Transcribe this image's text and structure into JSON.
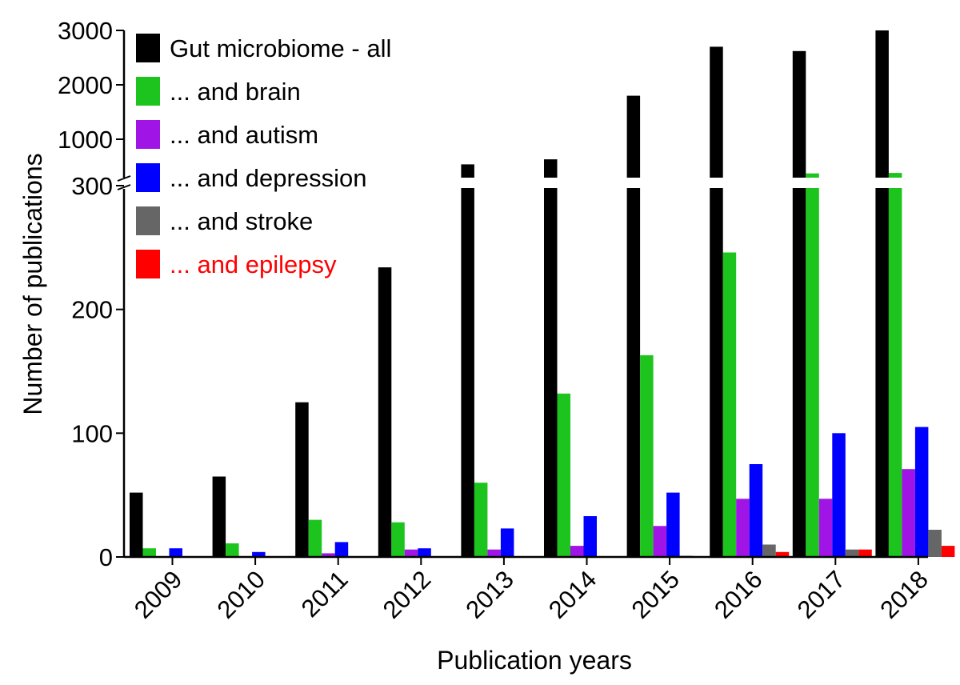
{
  "chart_data": {
    "type": "bar",
    "xlabel": "Publication years",
    "ylabel": "Number of publications",
    "y_axis": {
      "broken": true,
      "lower_segment": {
        "range": [
          0,
          300
        ],
        "ticks": [
          0,
          100,
          200,
          300
        ]
      },
      "upper_segment": {
        "range": [
          300,
          3000
        ],
        "ticks": [
          1000,
          2000,
          3000
        ]
      }
    },
    "categories": [
      "2009",
      "2010",
      "2011",
      "2012",
      "2013",
      "2014",
      "2015",
      "2016",
      "2017",
      "2018"
    ],
    "series": [
      {
        "name": "Gut microbiome - all",
        "color": "#000000",
        "label_color": "#000000",
        "values": [
          52,
          65,
          125,
          234,
          500,
          600,
          1800,
          2700,
          2620,
          3000
        ]
      },
      {
        "name": "... and brain",
        "color": "#1ec41e",
        "label_color": "#000000",
        "values": [
          7,
          11,
          30,
          28,
          60,
          132,
          163,
          246,
          320,
          330
        ]
      },
      {
        "name": "... and autism",
        "color": "#a014e6",
        "label_color": "#000000",
        "values": [
          0,
          0,
          3,
          6,
          6,
          9,
          25,
          47,
          47,
          71
        ]
      },
      {
        "name": "... and depression",
        "color": "#0000ff",
        "label_color": "#000000",
        "values": [
          7,
          4,
          12,
          7,
          23,
          33,
          52,
          75,
          100,
          105
        ]
      },
      {
        "name": "... and stroke",
        "color": "#666666",
        "label_color": "#000000",
        "values": [
          0,
          0,
          0,
          0,
          0,
          0,
          1,
          10,
          6,
          22
        ]
      },
      {
        "name": "... and epilepsy",
        "color": "#ff0000",
        "label_color": "#ff0000",
        "values": [
          0,
          0,
          0,
          0,
          0,
          0,
          0,
          4,
          6,
          9
        ]
      }
    ],
    "legend_position": "top-left",
    "grid": false
  }
}
